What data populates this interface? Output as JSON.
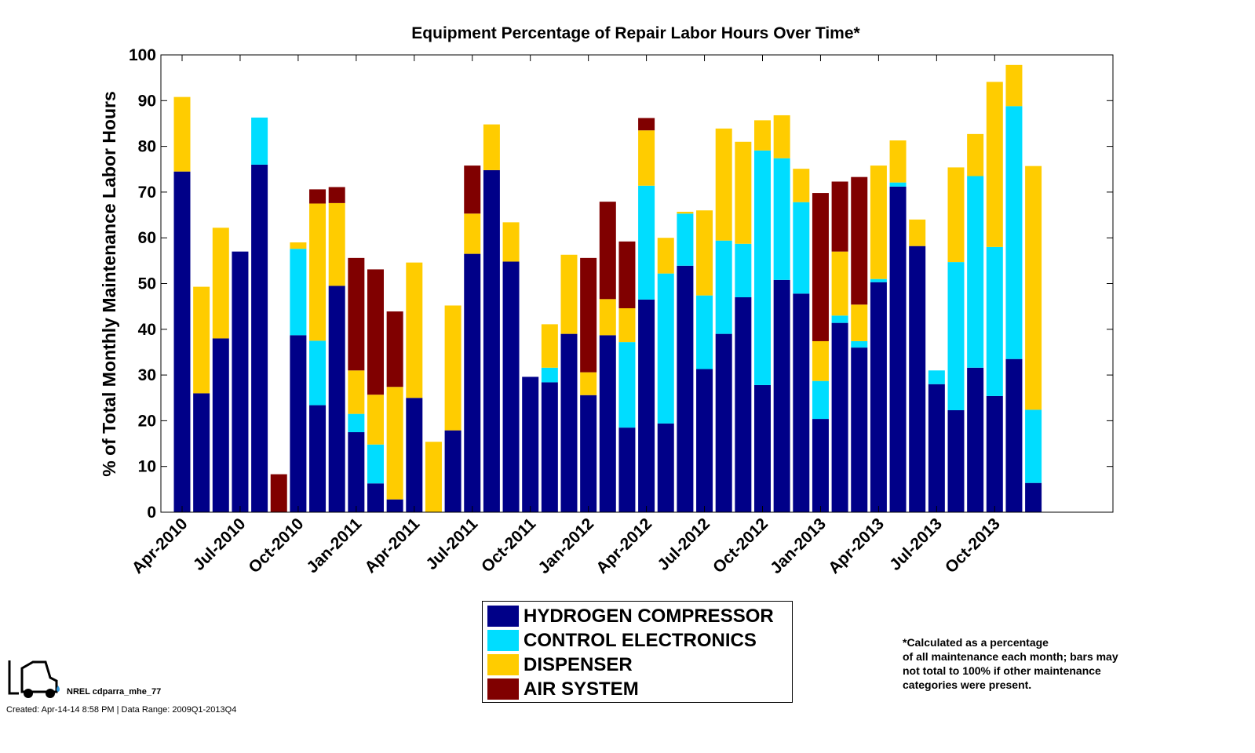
{
  "chart_data": {
    "type": "bar",
    "stacked": true,
    "title": "Equipment Percentage of Repair Labor Hours Over Time*",
    "xlabel": "",
    "ylabel": "% of Total Monthly Maintenance Labor Hours",
    "ylim": [
      0,
      100
    ],
    "yticks": [
      0,
      10,
      20,
      30,
      40,
      50,
      60,
      70,
      80,
      90,
      100
    ],
    "grid": false,
    "legend_placement": "bottom",
    "categories": [
      "Apr-2010",
      "May-2010",
      "Jun-2010",
      "Jul-2010",
      "Aug-2010",
      "Sep-2010",
      "Oct-2010",
      "Nov-2010",
      "Dec-2010",
      "Jan-2011",
      "Feb-2011",
      "Mar-2011",
      "Apr-2011",
      "May-2011",
      "Jun-2011",
      "Jul-2011",
      "Aug-2011",
      "Sep-2011",
      "Oct-2011",
      "Nov-2011",
      "Dec-2011",
      "Jan-2012",
      "Feb-2012",
      "Mar-2012",
      "Apr-2012",
      "May-2012",
      "Jun-2012",
      "Jul-2012",
      "Aug-2012",
      "Sep-2012",
      "Oct-2012",
      "Nov-2012",
      "Dec-2012",
      "Jan-2013",
      "Feb-2013",
      "Mar-2013",
      "Apr-2013",
      "May-2013",
      "Jun-2013",
      "Jul-2013",
      "Aug-2013",
      "Sep-2013",
      "Oct-2013",
      "Nov-2013",
      "Dec-2013"
    ],
    "xtick_labels": [
      "Apr-2010",
      "Jul-2010",
      "Oct-2010",
      "Jan-2011",
      "Apr-2011",
      "Jul-2011",
      "Oct-2011",
      "Jan-2012",
      "Apr-2012",
      "Jul-2012",
      "Oct-2012",
      "Jan-2013",
      "Apr-2013",
      "Jul-2013",
      "Oct-2013"
    ],
    "series": [
      {
        "name": "HYDROGEN COMPRESSOR",
        "color": "#000088",
        "values": [
          74.5,
          26,
          38,
          57,
          76,
          0,
          38.7,
          23.4,
          49.5,
          17.5,
          6.3,
          2.8,
          25,
          0,
          17.9,
          56.5,
          74.8,
          54.8,
          29.6,
          28.4,
          39,
          25.6,
          38.7,
          18.5,
          46.5,
          19.4,
          53.9,
          31.3,
          39,
          47,
          27.8,
          50.8,
          47.8,
          20.4,
          41.4,
          36,
          50.3,
          71.2,
          58.2,
          28,
          22.3,
          31.6,
          25.4,
          33.5,
          6.4
        ]
      },
      {
        "name": "CONTROL ELECTRONICS",
        "color": "#00DDFF",
        "values": [
          0,
          0,
          0,
          0,
          10.3,
          0,
          18.9,
          14.1,
          0,
          4,
          8.5,
          0,
          0,
          0,
          0,
          0,
          0,
          0,
          0,
          3.2,
          0,
          0,
          0,
          18.7,
          24.9,
          32.8,
          11.4,
          16.1,
          20.4,
          11.7,
          51.3,
          26.6,
          20,
          8.3,
          1.6,
          1.4,
          0.7,
          0.9,
          0,
          3,
          32.4,
          41.9,
          32.6,
          55.3,
          16
        ]
      },
      {
        "name": "DISPENSER",
        "color": "#FFCC00",
        "values": [
          16.3,
          23.3,
          24.2,
          0,
          0,
          0,
          1.4,
          30,
          18.1,
          9.5,
          10.9,
          24.6,
          29.6,
          15.4,
          27.3,
          8.8,
          10,
          8.6,
          0,
          9.5,
          17.3,
          5,
          7.9,
          7.4,
          12.1,
          7.8,
          0.4,
          18.6,
          24.5,
          22.3,
          6.6,
          9.4,
          7.3,
          8.7,
          14,
          8,
          24.8,
          9.2,
          5.8,
          0,
          20.7,
          9.2,
          36.1,
          9,
          53.3
        ]
      },
      {
        "name": "AIR SYSTEM",
        "color": "#800000",
        "values": [
          0,
          0,
          0,
          0,
          0,
          8.3,
          0,
          3.1,
          3.5,
          24.6,
          27.4,
          16.5,
          0,
          0,
          0,
          10.5,
          0,
          0,
          0,
          0,
          0,
          25,
          21.3,
          14.6,
          2.7,
          0,
          0,
          0,
          0,
          0,
          0,
          0,
          0,
          32.4,
          15.3,
          27.9,
          0,
          0,
          0,
          0,
          0,
          0,
          0,
          0,
          0
        ]
      }
    ]
  },
  "footnote": [
    "*Calculated as a percentage",
    "of all maintenance each month; bars may",
    "not total to 100% if other maintenance",
    "categories were present."
  ],
  "logo_text": "NREL cdparra_mhe_77",
  "created": "Created: Apr-14-14  8:58 PM | Data Range: 2009Q1-2013Q4",
  "icons": {
    "logo": "forklift-icon"
  }
}
